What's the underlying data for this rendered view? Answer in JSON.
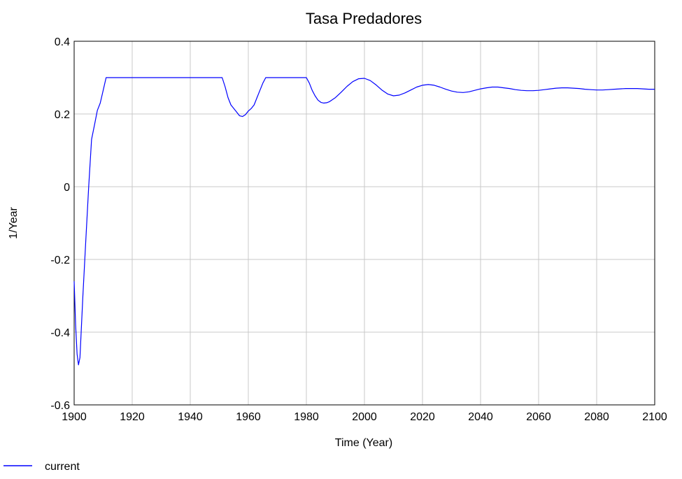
{
  "chart_data": {
    "type": "line",
    "title": "Tasa Predadores",
    "xlabel": "Time (Year)",
    "ylabel": "1/Year",
    "xlim": [
      1900,
      2100
    ],
    "ylim": [
      -0.6,
      0.4
    ],
    "x_ticks": [
      1900,
      1920,
      1940,
      1960,
      1980,
      2000,
      2020,
      2040,
      2060,
      2080,
      2100
    ],
    "y_ticks": [
      -0.6,
      -0.4,
      -0.2,
      0,
      0.2,
      0.4
    ],
    "x_tick_labels": [
      "1900",
      "1920",
      "1940",
      "1960",
      "1980",
      "2000",
      "2020",
      "2040",
      "2060",
      "2080",
      "2100"
    ],
    "y_tick_labels": [
      "-0.6",
      "-0.4",
      "-0.2",
      "0",
      "0.2",
      "0.4"
    ],
    "grid": true,
    "legend_position": "bottom-left",
    "series": [
      {
        "name": "current",
        "color": "#0000ff",
        "x": [
          1900,
          1900.5,
          1901,
          1901.5,
          1902,
          1903,
          1904,
          1905,
          1906,
          1907,
          1908,
          1909,
          1910,
          1911,
          1920,
          1940,
          1951,
          1952,
          1953,
          1954,
          1955,
          1956,
          1957,
          1958,
          1959,
          1960,
          1961,
          1962,
          1963,
          1964,
          1965,
          1966,
          1967,
          1970,
          1980,
          1981,
          1982,
          1983,
          1984,
          1985,
          1986,
          1987,
          1988,
          1990,
          1992,
          1994,
          1996,
          1998,
          2000,
          2002,
          2004,
          2006,
          2008,
          2010,
          2012,
          2014,
          2016,
          2018,
          2020,
          2022,
          2024,
          2026,
          2028,
          2030,
          2032,
          2034,
          2036,
          2038,
          2040,
          2042,
          2044,
          2046,
          2048,
          2050,
          2052,
          2054,
          2056,
          2058,
          2060,
          2062,
          2064,
          2066,
          2068,
          2070,
          2072,
          2074,
          2076,
          2078,
          2080,
          2082,
          2084,
          2086,
          2088,
          2090,
          2092,
          2094,
          2096,
          2098,
          2100
        ],
        "values": [
          -0.26,
          -0.38,
          -0.46,
          -0.49,
          -0.47,
          -0.3,
          -0.15,
          0.0,
          0.13,
          0.17,
          0.21,
          0.23,
          0.265,
          0.3,
          0.3,
          0.3,
          0.3,
          0.275,
          0.245,
          0.225,
          0.215,
          0.205,
          0.195,
          0.193,
          0.198,
          0.208,
          0.215,
          0.225,
          0.245,
          0.265,
          0.285,
          0.3,
          0.3,
          0.3,
          0.3,
          0.285,
          0.265,
          0.25,
          0.238,
          0.232,
          0.23,
          0.231,
          0.234,
          0.245,
          0.26,
          0.276,
          0.289,
          0.297,
          0.298,
          0.292,
          0.28,
          0.266,
          0.255,
          0.25,
          0.252,
          0.258,
          0.266,
          0.274,
          0.279,
          0.281,
          0.279,
          0.274,
          0.268,
          0.263,
          0.26,
          0.259,
          0.261,
          0.265,
          0.269,
          0.272,
          0.274,
          0.274,
          0.272,
          0.27,
          0.267,
          0.265,
          0.264,
          0.264,
          0.265,
          0.267,
          0.269,
          0.271,
          0.272,
          0.272,
          0.271,
          0.27,
          0.268,
          0.267,
          0.266,
          0.266,
          0.267,
          0.268,
          0.269,
          0.27,
          0.27,
          0.27,
          0.269,
          0.268,
          0.268
        ]
      }
    ]
  }
}
